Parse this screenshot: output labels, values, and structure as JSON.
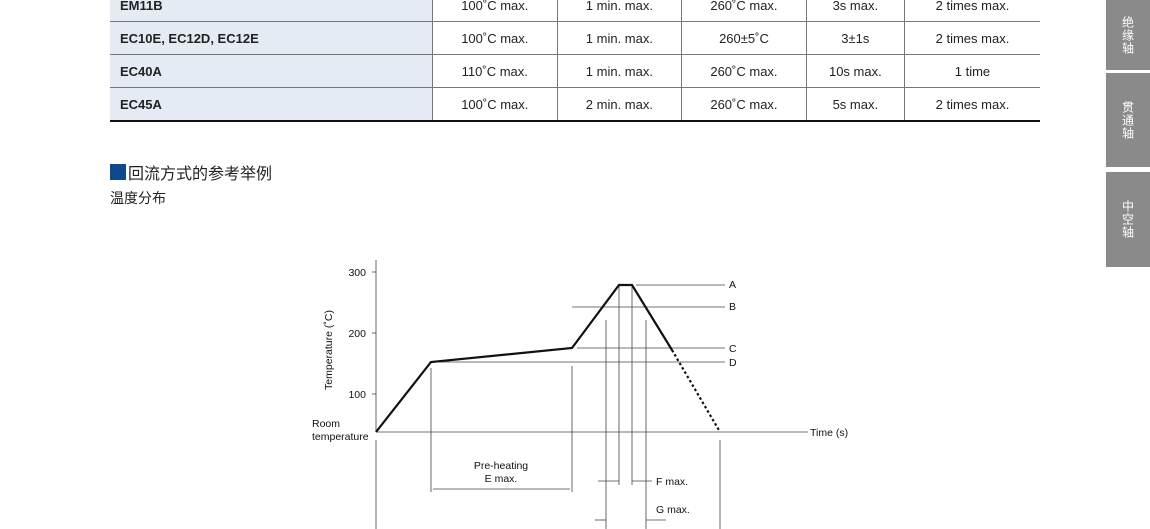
{
  "table": {
    "rows": [
      [
        "EM11B",
        "100˚C max.",
        "1 min. max.",
        "260˚C  max.",
        "3s max.",
        "2 times max."
      ],
      [
        "EC10E, EC12D, EC12E",
        "100˚C max.",
        "1 min. max.",
        "260±5˚C",
        "3±1s",
        "2 times max."
      ],
      [
        "EC40A",
        "110˚C max.",
        "1 min. max.",
        "260˚C  max.",
        "10s max.",
        "1 time"
      ],
      [
        "EC45A",
        "100˚C max.",
        "2 min. max.",
        "260˚C  max.",
        "5s max.",
        "2 times max."
      ]
    ]
  },
  "section": {
    "title": "回流方式的参考举例",
    "subtitle": "温度分布",
    "accent": "#0c4a8c"
  },
  "side_tabs": [
    "绝缘轴",
    "贯通轴",
    "中空轴"
  ],
  "diagram": {
    "y_label": "Temperature (˚C)",
    "y_ticks": [
      "300",
      "200",
      "100"
    ],
    "room": [
      "Room",
      "temperature"
    ],
    "x_label": "Time (s)",
    "levels": [
      "A",
      "B",
      "C",
      "D"
    ],
    "preheat": [
      "Pre-heating",
      "E max."
    ],
    "f": "F max.",
    "g": "G max."
  }
}
